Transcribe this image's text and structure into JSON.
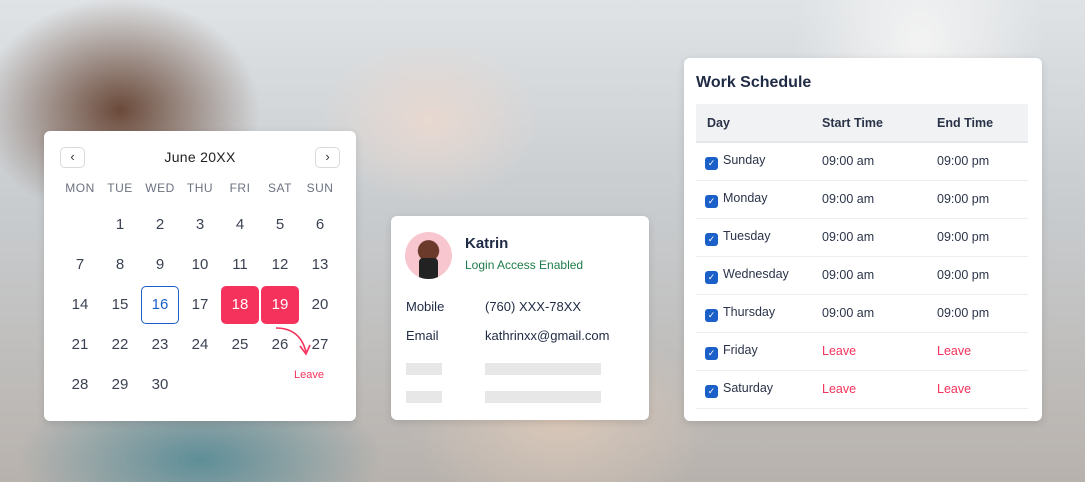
{
  "calendar": {
    "month": "June 20XX",
    "prev_icon": "chevron-left-icon",
    "next_icon": "chevron-right-icon",
    "prev": "‹",
    "next": "›",
    "weekdays": [
      "MON",
      "TUE",
      "WED",
      "THU",
      "FRI",
      "SAT",
      "SUN"
    ],
    "first_weekday_index": 1,
    "days_in_month": 30,
    "today": 16,
    "leave_days": [
      18,
      19
    ],
    "leave_label": "Leave",
    "colors": {
      "accent": "#1b5fc9",
      "leave": "#f5325c"
    }
  },
  "profile": {
    "name": "Katrin",
    "status": "Login Access Enabled",
    "mobile_label": "Mobile",
    "mobile": "(760) XXX-78XX",
    "email_label": "Email",
    "email": "kathrinxx@gmail.com"
  },
  "schedule": {
    "title": "Work Schedule",
    "headers": [
      "Day",
      "Start Time",
      "End Time"
    ],
    "rows": [
      {
        "day": "Sunday",
        "checked": true,
        "start": "09:00 am",
        "end": "09:00 pm"
      },
      {
        "day": "Monday",
        "checked": true,
        "start": "09:00 am",
        "end": "09:00 pm"
      },
      {
        "day": "Tuesday",
        "checked": true,
        "start": "09:00 am",
        "end": "09:00 pm"
      },
      {
        "day": "Wednesday",
        "checked": true,
        "start": "09:00 am",
        "end": "09:00 pm"
      },
      {
        "day": "Thursday",
        "checked": true,
        "start": "09:00 am",
        "end": "09:00 pm"
      },
      {
        "day": "Friday",
        "checked": true,
        "start": "Leave",
        "end": "Leave"
      },
      {
        "day": "Saturday",
        "checked": true,
        "start": "Leave",
        "end": "Leave"
      }
    ]
  }
}
